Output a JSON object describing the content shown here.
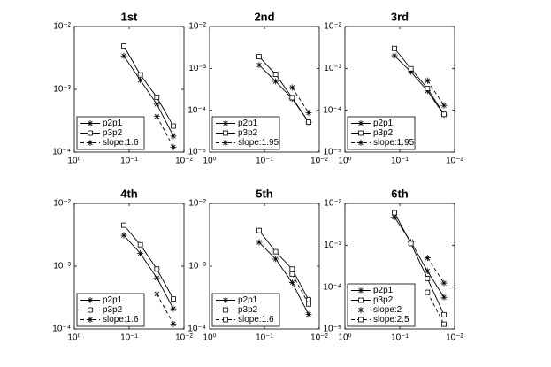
{
  "chart_data": [
    {
      "type": "line",
      "title": "1st",
      "xscale": "log",
      "yscale": "log",
      "xlim": [
        1,
        0.01
      ],
      "ylim": [
        0.0001,
        0.01
      ],
      "xticks": [
        {
          "value": 1,
          "label": "10⁰"
        },
        {
          "value": 0.1,
          "label": "10⁻¹"
        },
        {
          "value": 0.01,
          "label": "10⁻²"
        }
      ],
      "yticks": [
        {
          "value": 0.0001,
          "label": "10⁻⁴"
        },
        {
          "value": 0.001,
          "label": "10⁻³"
        },
        {
          "value": 0.01,
          "label": "10⁻²"
        }
      ],
      "legend": "southwest",
      "x": [
        0.125,
        0.0625,
        0.03125,
        0.015625
      ],
      "series": [
        {
          "name": "p2p1",
          "color": "#000000",
          "marker": "star",
          "dashed": false,
          "values": [
            0.0034,
            0.0014,
            0.00058,
            0.00018
          ]
        },
        {
          "name": "p3p2",
          "color": "#000000",
          "marker": "square",
          "dashed": false,
          "values": [
            0.0049,
            0.0017,
            0.00075,
            0.00026
          ]
        },
        {
          "name": "slope:1.6",
          "color": "#000000",
          "marker": "star",
          "dashed": true,
          "values": [
            null,
            null,
            0.00037,
            0.00012
          ]
        }
      ]
    },
    {
      "type": "line",
      "title": "2nd",
      "xscale": "log",
      "yscale": "log",
      "xlim": [
        1,
        0.01
      ],
      "ylim": [
        1e-05,
        0.01
      ],
      "xticks": [
        {
          "value": 1,
          "label": "10⁰"
        },
        {
          "value": 0.1,
          "label": "10⁻¹"
        },
        {
          "value": 0.01,
          "label": "10⁻²"
        }
      ],
      "yticks": [
        {
          "value": 1e-05,
          "label": "10⁻⁵"
        },
        {
          "value": 0.0001,
          "label": "10⁻⁴"
        },
        {
          "value": 0.001,
          "label": "10⁻³"
        },
        {
          "value": 0.01,
          "label": "10⁻²"
        }
      ],
      "legend": "southwest",
      "x": [
        0.125,
        0.0625,
        0.03125,
        0.015625
      ],
      "series": [
        {
          "name": "p2p1",
          "color": "#000000",
          "marker": "star",
          "dashed": false,
          "values": [
            0.0012,
            0.00049,
            0.00019,
            5.2e-05
          ]
        },
        {
          "name": "p3p2",
          "color": "#000000",
          "marker": "square",
          "dashed": false,
          "values": [
            0.0019,
            0.00072,
            0.0002,
            5.2e-05
          ]
        },
        {
          "name": "slope:1.95",
          "color": "#000000",
          "marker": "star",
          "dashed": true,
          "values": [
            null,
            null,
            0.00035,
            8.7e-05
          ]
        }
      ]
    },
    {
      "type": "line",
      "title": "3rd",
      "xscale": "log",
      "yscale": "log",
      "xlim": [
        1,
        0.01
      ],
      "ylim": [
        1e-05,
        0.01
      ],
      "xticks": [
        {
          "value": 1,
          "label": "10⁰"
        },
        {
          "value": 0.1,
          "label": "10⁻¹"
        },
        {
          "value": 0.01,
          "label": "10⁻²"
        }
      ],
      "yticks": [
        {
          "value": 1e-05,
          "label": "10⁻⁵"
        },
        {
          "value": 0.0001,
          "label": "10⁻⁴"
        },
        {
          "value": 0.001,
          "label": "10⁻³"
        },
        {
          "value": 0.01,
          "label": "10⁻²"
        }
      ],
      "legend": "southwest",
      "x": [
        0.125,
        0.0625,
        0.03125,
        0.015625
      ],
      "series": [
        {
          "name": "p2p1",
          "color": "#000000",
          "marker": "star",
          "dashed": false,
          "values": [
            0.002,
            0.00083,
            0.00029,
            7.8e-05
          ]
        },
        {
          "name": "p3p2",
          "color": "#000000",
          "marker": "square",
          "dashed": false,
          "values": [
            0.003,
            0.00098,
            0.00033,
            8e-05
          ]
        },
        {
          "name": "slope:1.95",
          "color": "#000000",
          "marker": "star",
          "dashed": true,
          "values": [
            null,
            null,
            0.00051,
            0.00013
          ]
        }
      ]
    },
    {
      "type": "line",
      "title": "4th",
      "xscale": "log",
      "yscale": "log",
      "xlim": [
        1,
        0.01
      ],
      "ylim": [
        0.0001,
        0.01
      ],
      "xticks": [
        {
          "value": 1,
          "label": "10⁰"
        },
        {
          "value": 0.1,
          "label": "10⁻¹"
        },
        {
          "value": 0.01,
          "label": "10⁻²"
        }
      ],
      "yticks": [
        {
          "value": 0.0001,
          "label": "10⁻⁴"
        },
        {
          "value": 0.001,
          "label": "10⁻³"
        },
        {
          "value": 0.01,
          "label": "10⁻²"
        }
      ],
      "legend": "southwest",
      "x": [
        0.125,
        0.0625,
        0.03125,
        0.015625
      ],
      "series": [
        {
          "name": "p2p1",
          "color": "#000000",
          "marker": "star",
          "dashed": false,
          "values": [
            0.0031,
            0.0016,
            0.00065,
            0.00021
          ]
        },
        {
          "name": "p3p2",
          "color": "#000000",
          "marker": "square",
          "dashed": false,
          "values": [
            0.0045,
            0.0022,
            0.0009,
            0.0003
          ]
        },
        {
          "name": "slope:1.6",
          "color": "#000000",
          "marker": "star",
          "dashed": true,
          "values": [
            null,
            null,
            0.00036,
            0.00012
          ]
        }
      ]
    },
    {
      "type": "line",
      "title": "5th",
      "xscale": "log",
      "yscale": "log",
      "xlim": [
        1,
        0.01
      ],
      "ylim": [
        0.0001,
        0.01
      ],
      "xticks": [
        {
          "value": 1,
          "label": "10⁰"
        },
        {
          "value": 0.1,
          "label": "10⁻¹"
        },
        {
          "value": 0.01,
          "label": "10⁻²"
        }
      ],
      "yticks": [
        {
          "value": 0.0001,
          "label": "10⁻⁴"
        },
        {
          "value": 0.001,
          "label": "10⁻³"
        },
        {
          "value": 0.01,
          "label": "10⁻²"
        }
      ],
      "legend": "southwest",
      "x": [
        0.125,
        0.0625,
        0.03125,
        0.015625
      ],
      "series": [
        {
          "name": "p2p1",
          "color": "#000000",
          "marker": "star",
          "dashed": false,
          "values": [
            0.0024,
            0.0013,
            0.00055,
            0.00017
          ]
        },
        {
          "name": "p3p2",
          "color": "#000000",
          "marker": "square",
          "dashed": false,
          "values": [
            0.0037,
            0.0017,
            0.0009,
            0.00029
          ]
        },
        {
          "name": "slope:1.6",
          "color": "#000000",
          "marker": "square",
          "dashed": true,
          "values": [
            null,
            null,
            0.00075,
            0.00025
          ]
        }
      ]
    },
    {
      "type": "line",
      "title": "6th",
      "xscale": "log",
      "yscale": "log",
      "xlim": [
        1,
        0.01
      ],
      "ylim": [
        1e-05,
        0.01
      ],
      "xticks": [
        {
          "value": 1,
          "label": "10⁰"
        },
        {
          "value": 0.1,
          "label": "10⁻¹"
        },
        {
          "value": 0.01,
          "label": "10⁻²"
        }
      ],
      "yticks": [
        {
          "value": 1e-05,
          "label": "10⁻⁵"
        },
        {
          "value": 0.0001,
          "label": "10⁻⁴"
        },
        {
          "value": 0.001,
          "label": "10⁻³"
        },
        {
          "value": 0.01,
          "label": "10⁻²"
        }
      ],
      "legend": "southwest",
      "x": [
        0.125,
        0.0625,
        0.03125,
        0.015625
      ],
      "series": [
        {
          "name": "p2p1",
          "color": "#000000",
          "marker": "star",
          "dashed": false,
          "values": [
            0.0047,
            0.0012,
            0.00024,
            5.7e-05
          ]
        },
        {
          "name": "p3p2",
          "color": "#000000",
          "marker": "square",
          "dashed": false,
          "values": [
            0.006,
            0.0011,
            0.00016,
            2.2e-05
          ]
        },
        {
          "name": "slope:2",
          "color": "#000000",
          "marker": "star",
          "dashed": true,
          "values": [
            null,
            null,
            0.0005,
            0.000125
          ]
        },
        {
          "name": "slope:2.5",
          "color": "#000000",
          "marker": "square",
          "dashed": true,
          "values": [
            null,
            null,
            7.5e-05,
            1.3e-05
          ]
        }
      ]
    }
  ]
}
